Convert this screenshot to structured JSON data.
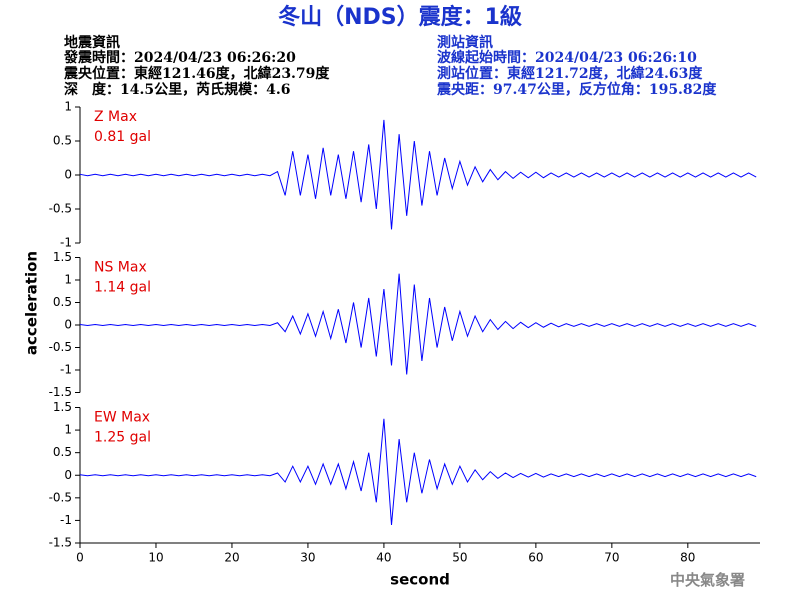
{
  "header": {
    "title": "冬山（NDS）震度：1級",
    "left": [
      "地震資訊",
      "發震時間：2024/04/23 06:26:20",
      "震央位置：東經121.46度，北緯23.79度",
      "深　度：14.5公里，芮氏規模：4.6"
    ],
    "right": [
      "測站資訊",
      "波線起始時間：2024/04/23 06:26:10",
      "測站位置：東經121.72度，北緯24.63度",
      "震央距：97.47公里，反方位角：195.82度"
    ],
    "y_label": "acceleration",
    "footer": "中央氣象署"
  },
  "chart_data": [
    {
      "type": "line",
      "annotation": [
        "Z Max",
        "0.81 gal"
      ],
      "color": "#0000ff",
      "xlim": [
        0,
        89.5
      ],
      "ylim": [
        -1,
        1
      ],
      "yticks": [
        -1,
        -0.5,
        0,
        0.5,
        1
      ],
      "x": [
        0,
        1,
        2,
        3,
        4,
        5,
        6,
        7,
        8,
        9,
        10,
        11,
        12,
        13,
        14,
        15,
        16,
        17,
        18,
        19,
        20,
        21,
        22,
        23,
        24,
        25,
        26,
        27,
        28,
        29,
        30,
        31,
        32,
        33,
        34,
        35,
        36,
        37,
        38,
        39,
        40,
        41,
        42,
        43,
        44,
        45,
        46,
        47,
        48,
        49,
        50,
        51,
        52,
        53,
        54,
        55,
        56,
        57,
        58,
        59,
        60,
        61,
        62,
        63,
        64,
        65,
        66,
        67,
        68,
        69,
        70,
        71,
        72,
        73,
        74,
        75,
        76,
        77,
        78,
        79,
        80,
        81,
        82,
        83,
        84,
        85,
        86,
        87,
        88,
        89
      ],
      "values": [
        0.01,
        -0.01,
        0.01,
        -0.01,
        0.01,
        -0.01,
        0.01,
        -0.01,
        0.01,
        -0.01,
        0.01,
        -0.01,
        0.01,
        -0.01,
        0.01,
        -0.01,
        0.01,
        -0.01,
        0.01,
        -0.01,
        0.01,
        -0.01,
        0.01,
        -0.01,
        0.01,
        -0.01,
        0.05,
        -0.3,
        0.35,
        -0.3,
        0.3,
        -0.35,
        0.4,
        -0.3,
        0.3,
        -0.35,
        0.35,
        -0.4,
        0.45,
        -0.5,
        0.81,
        -0.8,
        0.6,
        -0.6,
        0.5,
        -0.45,
        0.35,
        -0.3,
        0.25,
        -0.2,
        0.2,
        -0.15,
        0.12,
        -0.1,
        0.08,
        -0.07,
        0.05,
        -0.05,
        0.04,
        -0.04,
        0.04,
        -0.04,
        0.03,
        -0.03,
        0.03,
        -0.03,
        0.03,
        -0.03,
        0.03,
        -0.03,
        0.03,
        -0.03,
        0.03,
        -0.03,
        0.03,
        -0.03,
        0.03,
        -0.03,
        0.03,
        -0.03,
        0.03,
        -0.03,
        0.03,
        -0.03,
        0.03,
        -0.03,
        0.03,
        -0.03,
        0.03,
        -0.03
      ]
    },
    {
      "type": "line",
      "annotation": [
        "NS Max",
        "1.14 gal"
      ],
      "color": "#0000ff",
      "xlim": [
        0,
        89.5
      ],
      "ylim": [
        -1.5,
        1.5
      ],
      "yticks": [
        -1.5,
        -1,
        -0.5,
        0,
        0.5,
        1,
        1.5
      ],
      "x": [
        0,
        1,
        2,
        3,
        4,
        5,
        6,
        7,
        8,
        9,
        10,
        11,
        12,
        13,
        14,
        15,
        16,
        17,
        18,
        19,
        20,
        21,
        22,
        23,
        24,
        25,
        26,
        27,
        28,
        29,
        30,
        31,
        32,
        33,
        34,
        35,
        36,
        37,
        38,
        39,
        40,
        41,
        42,
        43,
        44,
        45,
        46,
        47,
        48,
        49,
        50,
        51,
        52,
        53,
        54,
        55,
        56,
        57,
        58,
        59,
        60,
        61,
        62,
        63,
        64,
        65,
        66,
        67,
        68,
        69,
        70,
        71,
        72,
        73,
        74,
        75,
        76,
        77,
        78,
        79,
        80,
        81,
        82,
        83,
        84,
        85,
        86,
        87,
        88,
        89
      ],
      "values": [
        0.01,
        -0.01,
        0.01,
        -0.01,
        0.01,
        -0.01,
        0.01,
        -0.01,
        0.01,
        -0.01,
        0.01,
        -0.01,
        0.01,
        -0.01,
        0.01,
        -0.01,
        0.01,
        -0.01,
        0.01,
        -0.01,
        0.01,
        -0.01,
        0.01,
        -0.01,
        0.01,
        -0.01,
        0.05,
        -0.15,
        0.2,
        -0.2,
        0.25,
        -0.25,
        0.3,
        -0.3,
        0.35,
        -0.4,
        0.5,
        -0.5,
        0.6,
        -0.7,
        0.8,
        -0.9,
        1.14,
        -1.1,
        0.9,
        -0.8,
        0.6,
        -0.5,
        0.4,
        -0.35,
        0.3,
        -0.25,
        0.2,
        -0.15,
        0.12,
        -0.1,
        0.08,
        -0.08,
        0.06,
        -0.06,
        0.05,
        -0.05,
        0.04,
        -0.04,
        0.03,
        -0.03,
        0.03,
        -0.03,
        0.03,
        -0.03,
        0.03,
        -0.03,
        0.03,
        -0.03,
        0.03,
        -0.03,
        0.03,
        -0.03,
        0.03,
        -0.03,
        0.03,
        -0.03,
        0.03,
        -0.03,
        0.03,
        -0.03,
        0.03,
        -0.03,
        0.03,
        -0.03
      ]
    },
    {
      "type": "line",
      "annotation": [
        "EW Max",
        "1.25 gal"
      ],
      "color": "#0000ff",
      "xlim": [
        0,
        89.5
      ],
      "ylim": [
        -1.5,
        1.5
      ],
      "yticks": [
        -1.5,
        -1,
        -0.5,
        0,
        0.5,
        1,
        1.5
      ],
      "xticks": [
        0,
        10,
        20,
        30,
        40,
        50,
        60,
        70,
        80
      ],
      "x_label": "second",
      "x": [
        0,
        1,
        2,
        3,
        4,
        5,
        6,
        7,
        8,
        9,
        10,
        11,
        12,
        13,
        14,
        15,
        16,
        17,
        18,
        19,
        20,
        21,
        22,
        23,
        24,
        25,
        26,
        27,
        28,
        29,
        30,
        31,
        32,
        33,
        34,
        35,
        36,
        37,
        38,
        39,
        40,
        41,
        42,
        43,
        44,
        45,
        46,
        47,
        48,
        49,
        50,
        51,
        52,
        53,
        54,
        55,
        56,
        57,
        58,
        59,
        60,
        61,
        62,
        63,
        64,
        65,
        66,
        67,
        68,
        69,
        70,
        71,
        72,
        73,
        74,
        75,
        76,
        77,
        78,
        79,
        80,
        81,
        82,
        83,
        84,
        85,
        86,
        87,
        88,
        89
      ],
      "values": [
        0.01,
        -0.01,
        0.01,
        -0.01,
        0.01,
        -0.01,
        0.01,
        -0.01,
        0.01,
        -0.01,
        0.01,
        -0.01,
        0.01,
        -0.01,
        0.01,
        -0.01,
        0.01,
        -0.01,
        0.01,
        -0.01,
        0.01,
        -0.01,
        0.01,
        -0.01,
        0.01,
        -0.01,
        0.05,
        -0.15,
        0.2,
        -0.15,
        0.2,
        -0.2,
        0.25,
        -0.2,
        0.25,
        -0.3,
        0.3,
        -0.35,
        0.5,
        -0.6,
        1.25,
        -1.1,
        0.8,
        -0.6,
        0.5,
        -0.4,
        0.35,
        -0.3,
        0.25,
        -0.2,
        0.2,
        -0.15,
        0.12,
        -0.1,
        0.08,
        -0.07,
        0.05,
        -0.05,
        0.04,
        -0.04,
        0.04,
        -0.04,
        0.03,
        -0.03,
        0.03,
        -0.03,
        0.03,
        -0.03,
        0.03,
        -0.03,
        0.03,
        -0.03,
        0.03,
        -0.03,
        0.03,
        -0.03,
        0.03,
        -0.03,
        0.03,
        -0.03,
        0.03,
        -0.03,
        0.03,
        -0.03,
        0.03,
        -0.03,
        0.03,
        -0.03,
        0.03,
        -0.03
      ]
    }
  ]
}
